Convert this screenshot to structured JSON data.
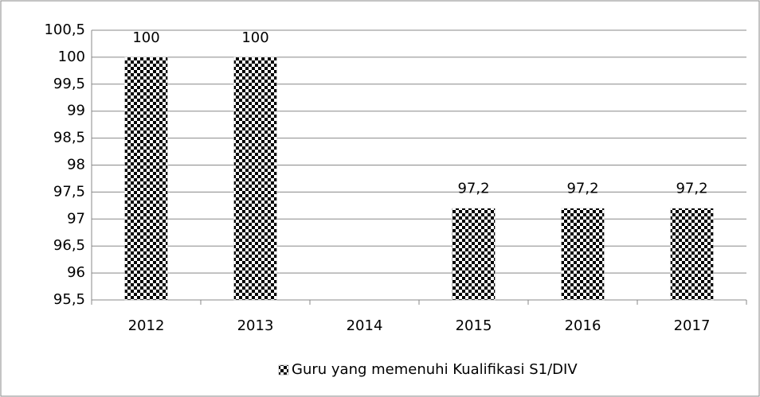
{
  "chart_data": {
    "type": "bar",
    "categories": [
      "2012",
      "2013",
      "2014",
      "2015",
      "2016",
      "2017"
    ],
    "series": [
      {
        "name": "Guru yang memenuhi Kualifikasi S1/DIV",
        "color": "#000000",
        "values": [
          100,
          100,
          null,
          97.2,
          97.2,
          97.2
        ],
        "value_labels": [
          "100",
          "100",
          null,
          "97,2",
          "97,2",
          "97,2"
        ]
      }
    ],
    "ylim": [
      95.5,
      100.5
    ],
    "yticks": [
      {
        "value": 95.5,
        "label": "95,5"
      },
      96,
      {
        "value": 96.5,
        "label": "96,5"
      },
      97,
      {
        "value": 97.5,
        "label": "97,5"
      },
      98,
      {
        "value": 98.5,
        "label": "98,5"
      },
      99,
      {
        "value": 99.5,
        "label": "99,5"
      },
      100,
      {
        "value": 100.5,
        "label": "100,5"
      }
    ],
    "grid": true,
    "legend": "bottom"
  }
}
